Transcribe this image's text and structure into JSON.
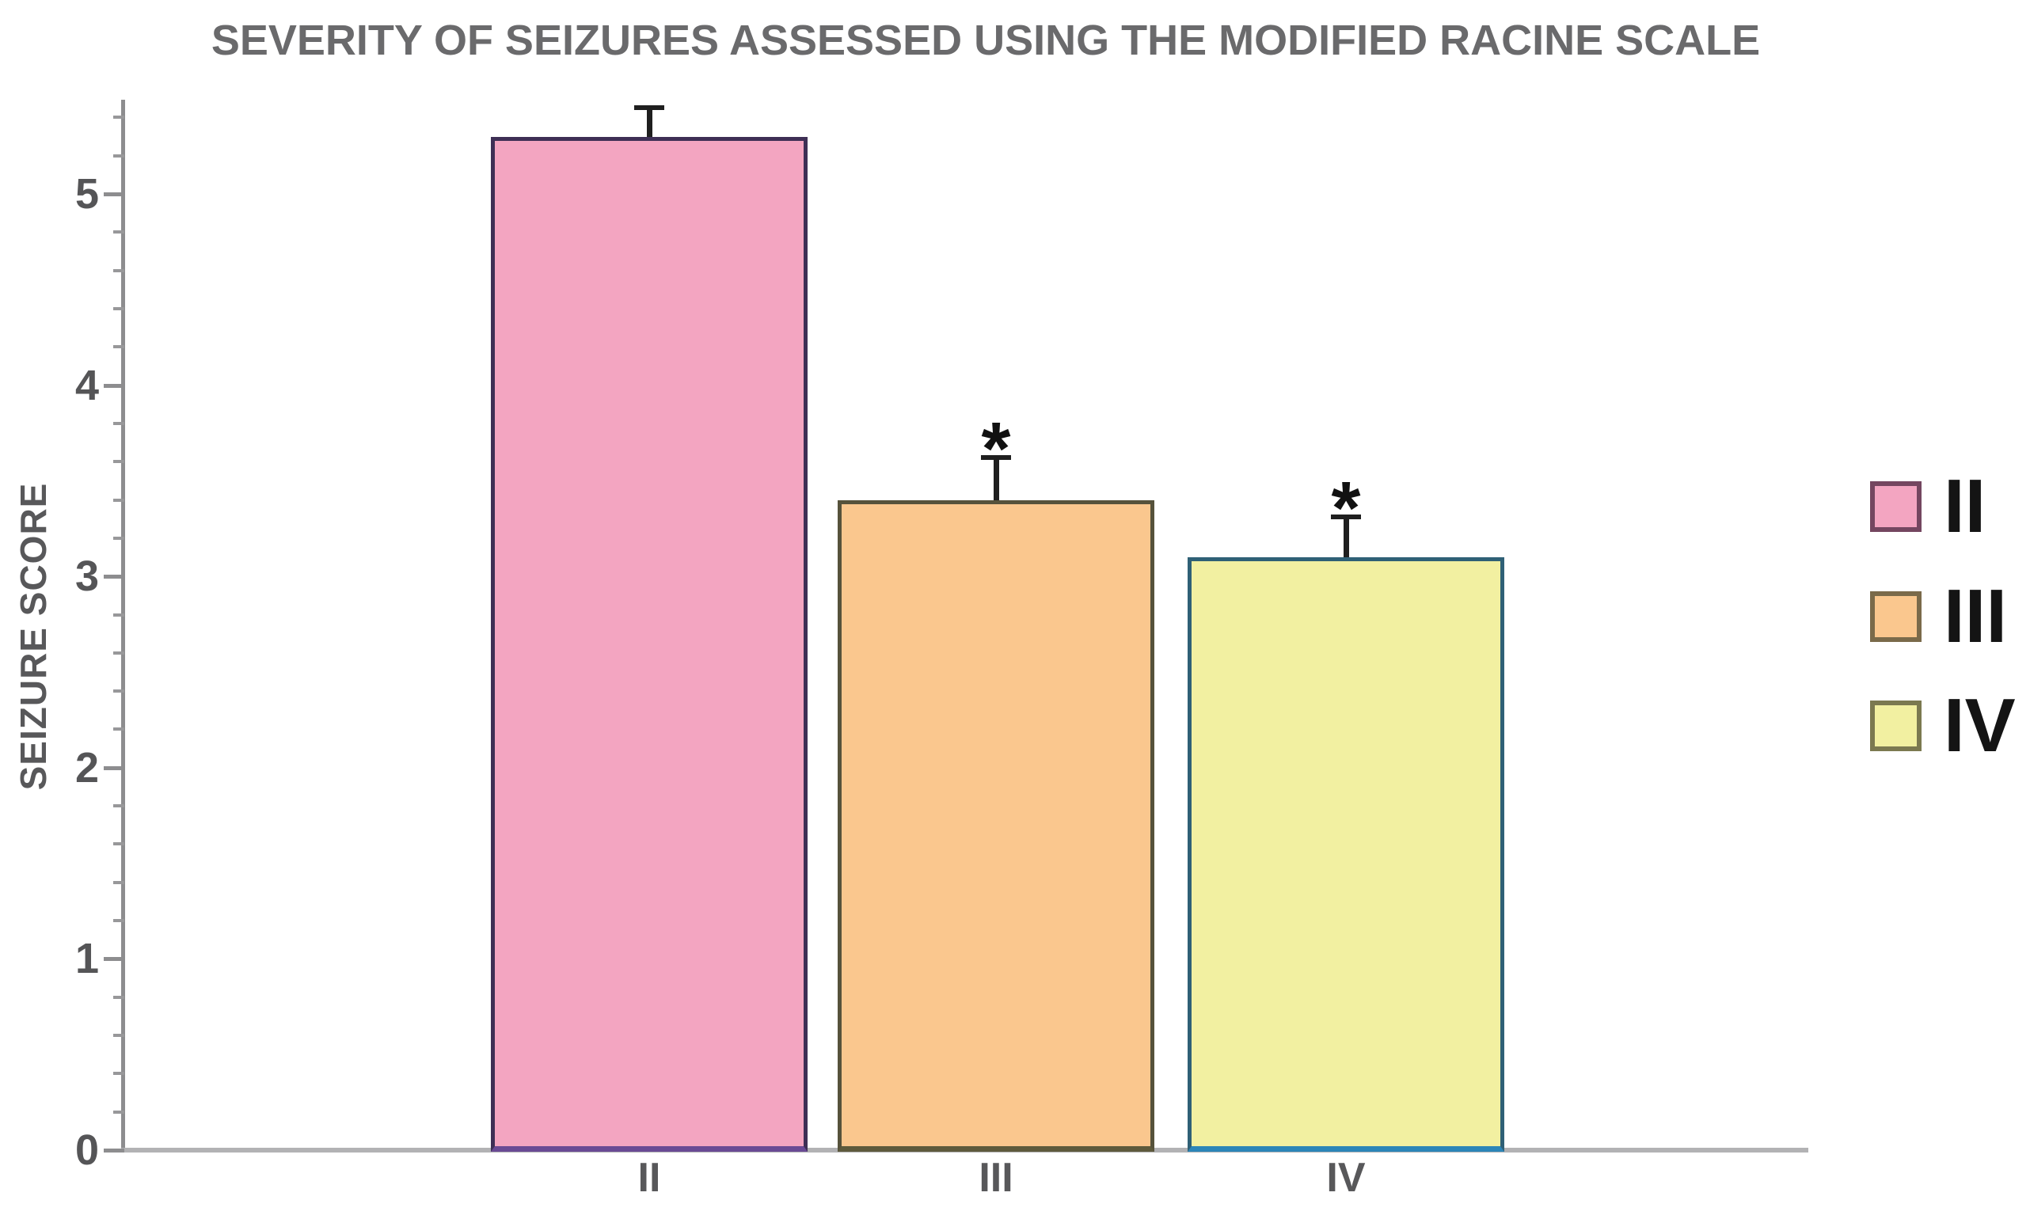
{
  "chart_data": {
    "type": "bar",
    "title": "SEVERITY OF SEIZURES ASSESSED USING THE MODIFIED RACINE SCALE",
    "ylabel": "SEIZURE SCORE",
    "xlabel": "",
    "categories": [
      "II",
      "III",
      "IV"
    ],
    "values": [
      5.3,
      3.4,
      3.1
    ],
    "errors": [
      0.15,
      0.22,
      0.21
    ],
    "significance": [
      false,
      true,
      true
    ],
    "significance_marker": "*",
    "ylim": [
      0,
      5.5
    ],
    "ytick_major_step": 1,
    "ytick_minor_step": 0.2,
    "yticks": [
      0,
      1,
      2,
      3,
      4,
      5
    ],
    "grid": false,
    "legend_position": "right",
    "legend": [
      {
        "label": "II",
        "swatch_fill": "#F3A5C1",
        "swatch_border": "#744660"
      },
      {
        "label": "III",
        "swatch_fill": "#FAC78E",
        "swatch_border": "#7A6A4A"
      },
      {
        "label": "IV",
        "swatch_fill": "#F2F0A1",
        "swatch_border": "#7B7950"
      }
    ],
    "bar_styles": [
      {
        "fill": "#F3A5C1",
        "border": "#3E2F55",
        "border_bottom": "#6A4A94"
      },
      {
        "fill": "#FAC78E",
        "border": "#56523B",
        "border_bottom": "#5E5A3C"
      },
      {
        "fill": "#F2F0A1",
        "border": "#2F6076",
        "border_bottom": "#2C86B8"
      }
    ],
    "colors": {
      "title_text": "#6a6a6c",
      "axis_text": "#58585a",
      "y_axis_line": "#8d8d8f",
      "x_axis_line": "#b2b2b4",
      "error_bar": "#1f1f1f",
      "significance_marker": "#111111",
      "background": "#ffffff"
    }
  }
}
